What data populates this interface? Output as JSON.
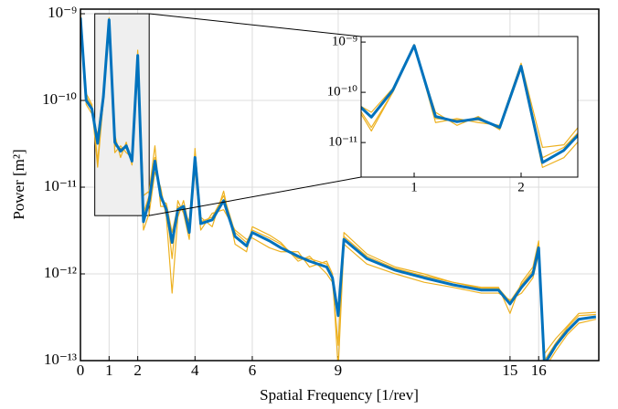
{
  "chart_data": {
    "type": "line",
    "x_label": "Spatial Frequency [1/rev]",
    "y_label": "Power [m²]",
    "x": [
      0,
      0.2,
      0.4,
      0.6,
      0.8,
      1,
      1.2,
      1.4,
      1.6,
      1.8,
      2,
      2.2,
      2.4,
      2.6,
      2.8,
      3,
      3.2,
      3.4,
      3.6,
      3.8,
      4,
      4.2,
      4.6,
      5,
      5.4,
      5.8,
      6,
      6.6,
      7,
      7.6,
      8,
      8.6,
      8.8,
      9,
      9.2,
      10,
      11,
      12,
      13,
      14,
      14.6,
      15,
      15.4,
      15.8,
      16,
      16.2,
      16.6,
      17,
      17.4,
      18
    ],
    "series": [
      {
        "color": "#EDB120",
        "values": [
          1e-09,
          1.2e-10,
          9e-11,
          2e-11,
          1e-10,
          9e-10,
          2.5e-11,
          3e-11,
          2.5e-11,
          2.2e-11,
          3.8e-10,
          8e-12,
          9e-12,
          3e-11,
          6e-12,
          6e-12,
          1.5e-12,
          7e-12,
          5e-12,
          2.5e-12,
          2.8e-11,
          4.5e-12,
          3.5e-12,
          9e-12,
          2.2e-12,
          1.8e-12,
          3.5e-12,
          2.8e-12,
          2.3e-12,
          1.4e-12,
          1.6e-12,
          1e-12,
          8e-13,
          1.5e-13,
          3e-12,
          1.7e-12,
          1.2e-12,
          1e-12,
          8e-13,
          7e-13,
          7e-13,
          3.5e-13,
          8e-13,
          1.2e-12,
          2.4e-12,
          1.2e-13,
          1.8e-13,
          2.5e-13,
          3.5e-13,
          3.6e-13
        ]
      },
      {
        "color": "#EDB120",
        "values": [
          8e-10,
          9e-11,
          7e-11,
          4e-11,
          1.2e-10,
          8e-10,
          4e-11,
          2.2e-11,
          3.3e-11,
          1.8e-11,
          3e-10,
          3.2e-12,
          5e-12,
          1.5e-11,
          1e-11,
          4.5e-12,
          6e-13,
          4.5e-12,
          7e-12,
          3.5e-12,
          1.6e-11,
          3.2e-12,
          5e-12,
          5.5e-12,
          3.2e-12,
          2.5e-12,
          2.6e-12,
          2e-12,
          1.8e-12,
          1.8e-12,
          1.2e-12,
          1.4e-12,
          1e-12,
          8e-14,
          2.2e-12,
          1.3e-12,
          1e-12,
          8e-13,
          7e-13,
          6e-13,
          6e-13,
          5e-13,
          6e-13,
          9e-13,
          1.7e-12,
          8e-14,
          1.3e-13,
          2e-13,
          2.7e-13,
          3e-13
        ]
      },
      {
        "color": "#EDB120",
        "values": [
          8.5e-10,
          1.1e-10,
          8.5e-11,
          1.7e-11,
          1e-10,
          8.2e-10,
          3e-11,
          2.8e-11,
          2.8e-11,
          2.1e-11,
          3.5e-10,
          5e-12,
          8e-12,
          2.2e-11,
          7e-12,
          6.5e-12,
          3e-12,
          6e-12,
          5.5e-12,
          4e-12,
          2.5e-11,
          4e-12,
          4.5e-12,
          8e-12,
          3e-12,
          2.3e-12,
          3.2e-12,
          2.6e-12,
          2.2e-12,
          1.5e-12,
          1.5e-12,
          1.3e-12,
          9e-13,
          4e-13,
          2.7e-12,
          1.6e-12,
          1.15e-12,
          9.5e-13,
          8e-13,
          6.8e-13,
          6.8e-13,
          4.8e-13,
          7.5e-13,
          1.1e-12,
          2.2e-12,
          1e-13,
          1.6e-13,
          2.4e-13,
          3.3e-13,
          3.4e-13
        ]
      },
      {
        "color": "#0072BD",
        "values": [
          9e-10,
          1e-10,
          8e-11,
          3.2e-11,
          1.1e-10,
          8.5e-10,
          3.3e-11,
          2.6e-11,
          3e-11,
          2e-11,
          3.3e-10,
          4e-12,
          7e-12,
          2e-11,
          8e-12,
          5.5e-12,
          2.3e-12,
          5.5e-12,
          6e-12,
          3e-12,
          2.2e-11,
          3.8e-12,
          4.2e-12,
          7e-12,
          2.7e-12,
          2.1e-12,
          3e-12,
          2.4e-12,
          2e-12,
          1.6e-12,
          1.4e-12,
          1.2e-12,
          9e-13,
          3.3e-13,
          2.5e-12,
          1.5e-12,
          1.1e-12,
          9e-13,
          7.5e-13,
          6.5e-13,
          6.5e-13,
          4.5e-13,
          7e-13,
          1e-12,
          2e-12,
          9e-14,
          1.5e-13,
          2.2e-13,
          3e-13,
          3.2e-13
        ]
      }
    ],
    "xlim": [
      0,
      18.1
    ],
    "ylim": [
      1e-13,
      1.13e-09
    ],
    "log_y": true,
    "grid": true,
    "xticks": [
      0,
      1,
      2,
      4,
      6,
      9,
      15,
      16
    ],
    "yticks": [
      {
        "value": 1e-13,
        "label": "10⁻¹³"
      },
      {
        "value": 1e-12,
        "label": "10⁻¹²"
      },
      {
        "value": 1e-11,
        "label": "10⁻¹¹"
      },
      {
        "value": 1e-10,
        "label": "10⁻¹⁰"
      },
      {
        "value": 1e-09,
        "label": "10⁻⁹"
      }
    ],
    "zoom_box": {
      "xlim": [
        0.5,
        2.4
      ],
      "ylim": [
        4.7e-12,
        1e-09
      ]
    },
    "inset": {
      "xlim": [
        0.504,
        2.53
      ],
      "ylim": [
        2.05e-12,
        1.29e-09
      ],
      "grid": false,
      "xticks": [
        1,
        2
      ],
      "yticks": [
        {
          "value": 1e-11,
          "label": "10⁻¹¹"
        },
        {
          "value": 1e-10,
          "label": "10⁻¹⁰"
        },
        {
          "value": 1e-09,
          "label": "10⁻⁹"
        }
      ]
    }
  }
}
